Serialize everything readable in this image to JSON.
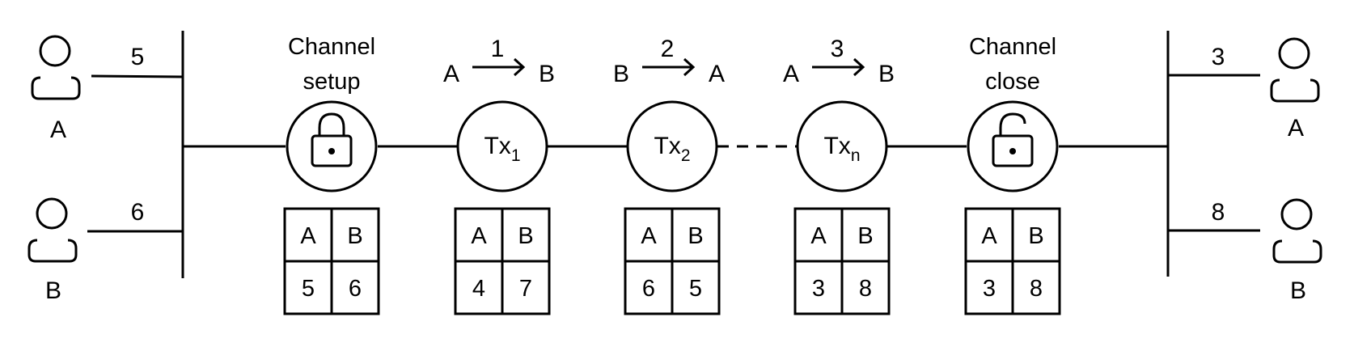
{
  "left_users": [
    {
      "label": "A",
      "balance": "5"
    },
    {
      "label": "B",
      "balance": "6"
    }
  ],
  "right_users": [
    {
      "label": "A",
      "balance": "3"
    },
    {
      "label": "B",
      "balance": "8"
    }
  ],
  "stages": [
    {
      "kind": "lock",
      "title_line1": "Channel",
      "title_line2": "setup",
      "table": {
        "a_head": "A",
        "b_head": "B",
        "a_val": "5",
        "b_val": "6"
      }
    },
    {
      "kind": "tx",
      "tx_base": "Tx",
      "tx_sub": "1",
      "arrow": {
        "from": "A",
        "step": "1",
        "to": "B"
      },
      "table": {
        "a_head": "A",
        "b_head": "B",
        "a_val": "4",
        "b_val": "7"
      }
    },
    {
      "kind": "tx",
      "tx_base": "Tx",
      "tx_sub": "2",
      "arrow": {
        "from": "B",
        "step": "2",
        "to": "A"
      },
      "table": {
        "a_head": "A",
        "b_head": "B",
        "a_val": "6",
        "b_val": "5"
      }
    },
    {
      "kind": "tx",
      "tx_base": "Tx",
      "tx_sub": "n",
      "arrow": {
        "from": "A",
        "step": "3",
        "to": "B"
      },
      "table": {
        "a_head": "A",
        "b_head": "B",
        "a_val": "3",
        "b_val": "8"
      }
    },
    {
      "kind": "unlock",
      "title_line1": "Channel",
      "title_line2": "close",
      "table": {
        "a_head": "A",
        "b_head": "B",
        "a_val": "3",
        "b_val": "8"
      }
    }
  ],
  "icons": {
    "user": "user-icon",
    "lock": "lock-icon",
    "unlock": "unlock-icon",
    "arrow": "right-arrow-icon"
  }
}
